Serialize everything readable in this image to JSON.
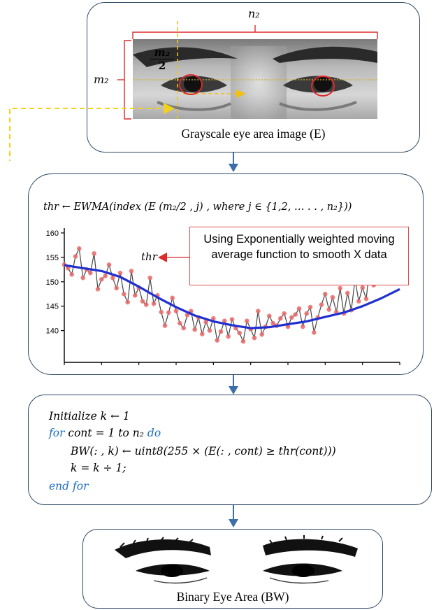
{
  "top_box": {
    "dim_width_label": "n₂",
    "dim_height_label": "m₂",
    "half_height_num": "m₂",
    "half_height_den": "2",
    "caption": "Grayscale eye area image (E)"
  },
  "chart_box": {
    "formula": "thr ← EWMA(index (E (m₂/2 , j) , where j ∈ {1,2, … . . , n₂}))",
    "thr_label": "thr",
    "note_text": "Using Exponentially weighted moving average function to smooth X data"
  },
  "chart_data": {
    "type": "line",
    "yticks": [
      "160",
      "155",
      "150",
      "145",
      "140"
    ],
    "ylim": [
      133.5,
      161
    ],
    "series": [
      {
        "role": "raw",
        "color": "#e86a6a",
        "x": [
          0,
          1,
          2,
          3,
          4,
          5,
          6,
          7,
          8,
          9,
          10,
          11,
          12,
          13,
          14,
          15,
          16,
          17,
          18,
          19,
          20,
          21,
          22,
          23,
          24,
          25,
          26,
          27,
          28,
          29,
          30,
          31,
          32,
          33,
          34,
          35,
          36,
          37,
          38,
          39,
          40,
          41,
          42,
          43,
          44,
          45,
          46,
          47,
          48,
          49,
          50,
          51,
          52,
          53,
          54,
          55,
          56,
          57,
          58,
          59,
          60,
          61,
          62,
          63,
          64,
          65,
          66,
          67,
          68,
          69,
          70,
          71,
          72,
          73,
          74,
          75,
          76,
          77,
          78,
          79,
          80,
          81,
          82,
          83,
          84,
          85,
          86,
          87,
          88,
          89,
          90
        ],
        "y": [
          153.5,
          152.8,
          151.5,
          155.2,
          156.8,
          150.8,
          152.5,
          151.8,
          155.8,
          148.5,
          150.5,
          151.2,
          153.5,
          150.8,
          148.7,
          151.8,
          147.5,
          145.8,
          152.2,
          147.2,
          148.8,
          146.0,
          145.3,
          150.8,
          145.5,
          147.2,
          143.8,
          141.0,
          143.7,
          146.7,
          144.0,
          141.5,
          140.5,
          143.2,
          144.0,
          140.2,
          142.7,
          139.3,
          141.8,
          140.0,
          142.5,
          138.0,
          139.8,
          142.0,
          138.8,
          142.3,
          140.5,
          139.5,
          137.8,
          142.0,
          140.3,
          138.5,
          144.0,
          139.2,
          140.8,
          143.0,
          141.5,
          141.0,
          142.5,
          143.5,
          140.8,
          142.7,
          143.3,
          144.5,
          140.8,
          143.5,
          144.8,
          139.6,
          142.7,
          145.3,
          147.5,
          144.3,
          146.8,
          143.8,
          148.7,
          143.5,
          147.7,
          144.2,
          150.5,
          146.0,
          148.8,
          146.5,
          153.3,
          149.3,
          151.5,
          152.5,
          154.0,
          155.2,
          151.0,
          155.2,
          155.5
        ]
      },
      {
        "role": "smoothed",
        "color": "#1f2fd0",
        "x": [
          0,
          5,
          10,
          15,
          20,
          25,
          30,
          35,
          40,
          45,
          50,
          55,
          60,
          65,
          70,
          75,
          80,
          85,
          90
        ],
        "y": [
          153.4,
          152.8,
          152.2,
          151.0,
          149.0,
          146.8,
          144.8,
          143.1,
          141.9,
          141.1,
          140.5,
          140.7,
          141.3,
          141.9,
          142.8,
          143.7,
          145.0,
          146.6,
          148.5
        ]
      }
    ]
  },
  "code_box": {
    "line1": "Initialize k ← 1",
    "line2_kw": "for",
    "line2_mid": " cont = 1 to n₂ ",
    "line2_kw2": "do",
    "line3": "BW(: , k) ← uint8(255 × (E(: , cont) ≥ thr(cont)))",
    "line4": "k = k ÷ 1;",
    "line5": "end for"
  },
  "bottom_box": {
    "caption": "Binary Eye Area (BW)"
  },
  "colors": {
    "box_border": "#2f4a66",
    "arrow": "#3c6ea8",
    "dashed": "#f2d21a",
    "red": "#dd2a2a",
    "keyword": "#1f6fbf"
  }
}
